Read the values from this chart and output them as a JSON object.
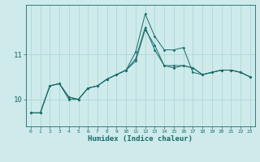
{
  "xlabel": "Humidex (Indice chaleur)",
  "ylabel": "",
  "background_color": "#ceeaea",
  "line_color": "#1a6b6b",
  "grid_color": "#aad4d4",
  "x_values": [
    0,
    1,
    2,
    3,
    4,
    5,
    6,
    7,
    8,
    9,
    10,
    11,
    12,
    13,
    14,
    15,
    16,
    17,
    18,
    19,
    20,
    21,
    22,
    23
  ],
  "series1": [
    9.7,
    9.7,
    10.3,
    10.35,
    10.05,
    10.0,
    10.25,
    10.3,
    10.45,
    10.55,
    10.65,
    10.85,
    11.55,
    11.2,
    10.75,
    10.7,
    10.75,
    10.7,
    10.55,
    10.6,
    10.65,
    10.65,
    10.6,
    10.5
  ],
  "series2": [
    9.7,
    9.7,
    10.3,
    10.35,
    10.05,
    10.0,
    10.25,
    10.3,
    10.45,
    10.55,
    10.65,
    10.9,
    11.6,
    11.1,
    10.75,
    10.75,
    10.75,
    10.7,
    10.55,
    10.6,
    10.65,
    10.65,
    10.6,
    10.5
  ],
  "series3": [
    9.7,
    9.7,
    10.3,
    10.35,
    10.0,
    10.0,
    10.25,
    10.3,
    10.45,
    10.55,
    10.65,
    11.05,
    11.9,
    11.4,
    11.1,
    11.1,
    11.15,
    10.6,
    10.55,
    10.6,
    10.65,
    10.65,
    10.6,
    10.5
  ],
  "yticks": [
    10,
    11
  ],
  "ylim": [
    9.4,
    12.1
  ],
  "xlim": [
    -0.5,
    23.5
  ]
}
